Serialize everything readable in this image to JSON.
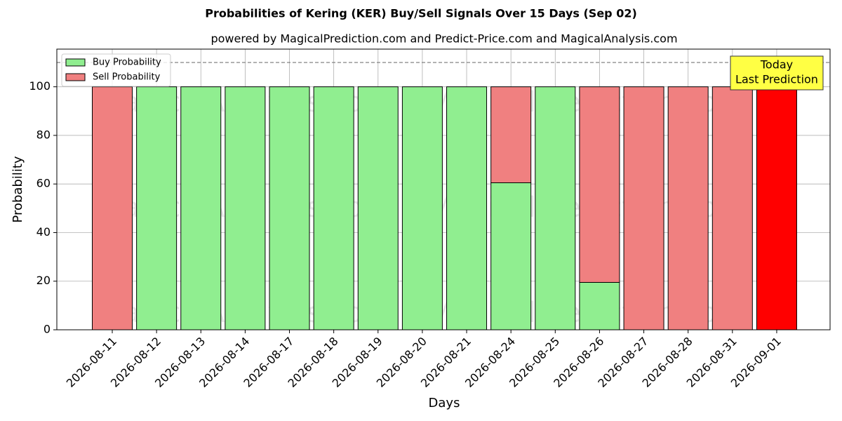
{
  "chart_data": {
    "type": "stacked-bar",
    "title": "Probabilities of Kering (KER) Buy/Sell Signals Over 15 Days (Sep 02)",
    "subtitle": "powered by MagicalPrediction.com and Predict-Price.com and MagicalAnalysis.com",
    "x_label": "Days",
    "y_label": "Probability",
    "categories": [
      "2026-08-11",
      "2026-08-12",
      "2026-08-13",
      "2026-08-14",
      "2026-08-17",
      "2026-08-18",
      "2026-08-19",
      "2026-08-20",
      "2026-08-21",
      "2026-08-24",
      "2026-08-25",
      "2026-08-26",
      "2026-08-27",
      "2026-08-28",
      "2026-08-31",
      "2026-09-01"
    ],
    "series": [
      {
        "name": "Buy Probability",
        "color": "#90ee90",
        "values": [
          0,
          100,
          100,
          100,
          100,
          100,
          100,
          100,
          100,
          60.5,
          100,
          19.5,
          0,
          0,
          0,
          0
        ]
      },
      {
        "name": "Sell Probability",
        "color": "#f08080",
        "values": [
          100,
          0,
          0,
          0,
          0,
          0,
          0,
          0,
          0,
          39.5,
          0,
          80.5,
          100,
          100,
          100,
          100
        ],
        "colors": [
          "#f08080",
          "#f08080",
          "#f08080",
          "#f08080",
          "#f08080",
          "#f08080",
          "#f08080",
          "#f08080",
          "#f08080",
          "#f08080",
          "#f08080",
          "#f08080",
          "#f08080",
          "#f08080",
          "#f08080",
          "#ff0000"
        ]
      }
    ],
    "ylim": [
      0,
      115.5
    ],
    "yticks": [
      0,
      20,
      40,
      60,
      80,
      100
    ],
    "grid": true,
    "legend": "upper-left",
    "reference_line": 110,
    "annotation": [
      "Today",
      "Last Prediction"
    ],
    "watermarks": [
      "MagicalAnalysis.com",
      "MagicalPrediction.com"
    ]
  }
}
